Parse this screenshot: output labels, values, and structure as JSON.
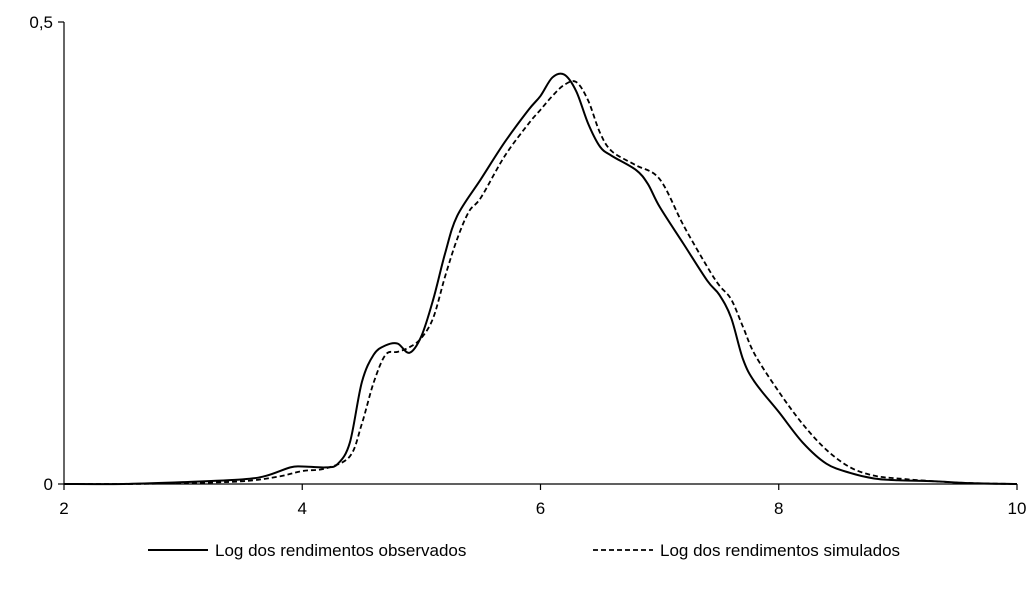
{
  "chart_data": {
    "type": "line",
    "title": "",
    "xlabel": "",
    "ylabel": "",
    "xlim": [
      2,
      10
    ],
    "ylim": [
      0,
      0.5
    ],
    "x_ticks": [
      2,
      4,
      6,
      8,
      10
    ],
    "x_tick_labels": [
      "2",
      "4",
      "6",
      "8",
      "10"
    ],
    "y_ticks": [
      0,
      0.5
    ],
    "y_tick_labels": [
      "0",
      "0,5"
    ],
    "grid": false,
    "legend_position": "bottom",
    "series": [
      {
        "name": "Log dos rendimentos observados",
        "style": "solid",
        "color": "#000000",
        "points": [
          [
            2.0,
            0.0
          ],
          [
            2.5,
            0.0
          ],
          [
            3.0,
            0.002
          ],
          [
            3.5,
            0.005
          ],
          [
            3.7,
            0.009
          ],
          [
            3.9,
            0.018
          ],
          [
            4.0,
            0.019
          ],
          [
            4.2,
            0.018
          ],
          [
            4.3,
            0.022
          ],
          [
            4.4,
            0.045
          ],
          [
            4.5,
            0.11
          ],
          [
            4.6,
            0.14
          ],
          [
            4.7,
            0.15
          ],
          [
            4.8,
            0.152
          ],
          [
            4.9,
            0.142
          ],
          [
            5.0,
            0.16
          ],
          [
            5.1,
            0.2
          ],
          [
            5.2,
            0.25
          ],
          [
            5.3,
            0.29
          ],
          [
            5.5,
            0.33
          ],
          [
            5.7,
            0.37
          ],
          [
            5.9,
            0.405
          ],
          [
            6.0,
            0.42
          ],
          [
            6.1,
            0.44
          ],
          [
            6.2,
            0.443
          ],
          [
            6.3,
            0.425
          ],
          [
            6.4,
            0.39
          ],
          [
            6.5,
            0.365
          ],
          [
            6.6,
            0.355
          ],
          [
            6.8,
            0.34
          ],
          [
            6.9,
            0.325
          ],
          [
            7.0,
            0.3
          ],
          [
            7.2,
            0.26
          ],
          [
            7.4,
            0.22
          ],
          [
            7.5,
            0.205
          ],
          [
            7.6,
            0.18
          ],
          [
            7.7,
            0.135
          ],
          [
            7.8,
            0.11
          ],
          [
            8.0,
            0.078
          ],
          [
            8.2,
            0.045
          ],
          [
            8.4,
            0.022
          ],
          [
            8.6,
            0.012
          ],
          [
            8.8,
            0.006
          ],
          [
            9.0,
            0.004
          ],
          [
            9.3,
            0.003
          ],
          [
            9.6,
            0.001
          ],
          [
            10.0,
            0.0
          ]
        ]
      },
      {
        "name": "Log dos rendimentos simulados",
        "style": "dashed",
        "color": "#000000",
        "points": [
          [
            2.0,
            0.0
          ],
          [
            2.5,
            0.0
          ],
          [
            3.0,
            0.001
          ],
          [
            3.5,
            0.003
          ],
          [
            3.8,
            0.008
          ],
          [
            4.0,
            0.014
          ],
          [
            4.2,
            0.017
          ],
          [
            4.4,
            0.03
          ],
          [
            4.5,
            0.065
          ],
          [
            4.6,
            0.11
          ],
          [
            4.7,
            0.14
          ],
          [
            4.8,
            0.143
          ],
          [
            4.9,
            0.148
          ],
          [
            5.0,
            0.158
          ],
          [
            5.1,
            0.18
          ],
          [
            5.2,
            0.225
          ],
          [
            5.3,
            0.265
          ],
          [
            5.4,
            0.295
          ],
          [
            5.5,
            0.31
          ],
          [
            5.7,
            0.355
          ],
          [
            5.9,
            0.39
          ],
          [
            6.0,
            0.405
          ],
          [
            6.1,
            0.42
          ],
          [
            6.2,
            0.432
          ],
          [
            6.3,
            0.435
          ],
          [
            6.4,
            0.415
          ],
          [
            6.5,
            0.38
          ],
          [
            6.6,
            0.36
          ],
          [
            6.8,
            0.345
          ],
          [
            7.0,
            0.33
          ],
          [
            7.2,
            0.28
          ],
          [
            7.4,
            0.235
          ],
          [
            7.5,
            0.215
          ],
          [
            7.6,
            0.2
          ],
          [
            7.7,
            0.17
          ],
          [
            7.8,
            0.14
          ],
          [
            8.0,
            0.1
          ],
          [
            8.2,
            0.065
          ],
          [
            8.4,
            0.037
          ],
          [
            8.6,
            0.018
          ],
          [
            8.8,
            0.009
          ],
          [
            9.0,
            0.006
          ],
          [
            9.3,
            0.003
          ],
          [
            9.6,
            0.001
          ],
          [
            10.0,
            0.0
          ]
        ]
      }
    ]
  }
}
